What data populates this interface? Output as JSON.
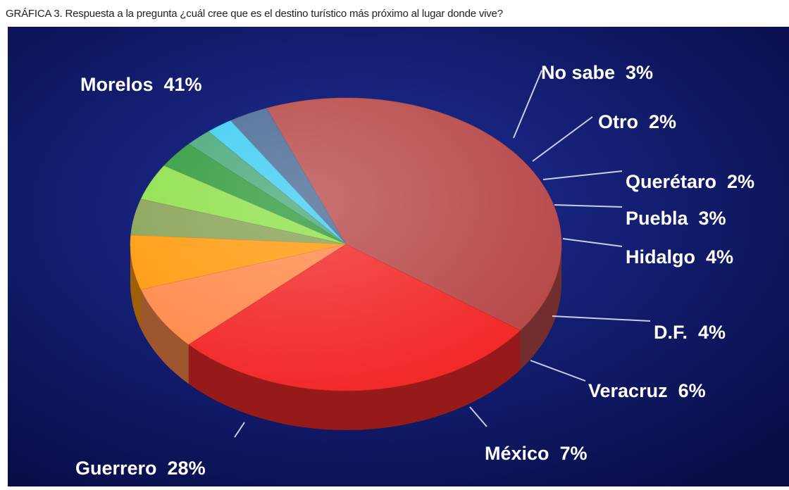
{
  "caption": "GRÁFICA 3. Respuesta a la pregunta ¿cuál cree que es el destino turístico más próximo al lugar donde vive?",
  "colors": {
    "background_center": "#1f2f9a",
    "background_edge": "#070c45",
    "label_text": "#ffffff",
    "leader_line": "#c8cde8"
  },
  "chart_data": {
    "type": "pie",
    "title": "GRÁFICA 3. Respuesta a la pregunta ¿cuál cree que es el destino turístico más próximo al lugar donde vive?",
    "style": "3d",
    "slices": [
      {
        "label": "Morelos",
        "value": 41,
        "display": "Morelos  41%",
        "color": "#b84a4a"
      },
      {
        "label": "No sabe",
        "value": 3,
        "display": "No sabe  3%",
        "color": "#4a6a95"
      },
      {
        "label": "Otro",
        "value": 2,
        "display": "Otro  2%",
        "color": "#3fcdf2"
      },
      {
        "label": "Querétaro",
        "value": 2,
        "display": "Querétaro  2%",
        "color": "#48a879"
      },
      {
        "label": "Puebla",
        "value": 3,
        "display": "Puebla  3%",
        "color": "#2f9a3c"
      },
      {
        "label": "Hidalgo",
        "value": 4,
        "display": "Hidalgo  4%",
        "color": "#8ee04a"
      },
      {
        "label": "D.F.",
        "value": 4,
        "display": "D.F.  4%",
        "color": "#87a255"
      },
      {
        "label": "Veracruz",
        "value": 6,
        "display": "Veracruz  6%",
        "color": "#ff9a0d"
      },
      {
        "label": "México",
        "value": 7,
        "display": "México  7%",
        "color": "#ff8a4c"
      },
      {
        "label": "Guerrero",
        "value": 28,
        "display": "Guerrero  28%",
        "color": "#f22a2a"
      }
    ]
  }
}
